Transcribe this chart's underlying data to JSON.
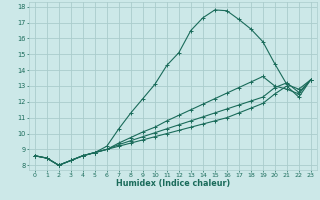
{
  "title": "",
  "xlabel": "Humidex (Indice chaleur)",
  "xlim": [
    -0.5,
    23.5
  ],
  "ylim": [
    7.7,
    18.3
  ],
  "xticks": [
    0,
    1,
    2,
    3,
    4,
    5,
    6,
    7,
    8,
    9,
    10,
    11,
    12,
    13,
    14,
    15,
    16,
    17,
    18,
    19,
    20,
    21,
    22,
    23
  ],
  "yticks": [
    8,
    9,
    10,
    11,
    12,
    13,
    14,
    15,
    16,
    17,
    18
  ],
  "bg_color": "#cce8e8",
  "grid_color": "#aacccc",
  "line_color": "#1a6b5a",
  "lines": [
    {
      "x": [
        0,
        1,
        2,
        3,
        4,
        5,
        6,
        7,
        8,
        9,
        10,
        11,
        12,
        13,
        14,
        15,
        16,
        17,
        18,
        19,
        20,
        21,
        22,
        23
      ],
      "y": [
        8.6,
        8.45,
        8.0,
        8.3,
        8.6,
        8.8,
        9.2,
        10.3,
        11.3,
        12.2,
        13.1,
        14.3,
        15.1,
        16.5,
        17.3,
        17.8,
        17.75,
        17.2,
        16.6,
        15.8,
        14.4,
        13.1,
        12.8,
        13.4
      ]
    },
    {
      "x": [
        0,
        1,
        2,
        3,
        4,
        5,
        6,
        7,
        8,
        9,
        10,
        11,
        12,
        13,
        14,
        15,
        16,
        17,
        18,
        19,
        20,
        21,
        22,
        23
      ],
      "y": [
        8.6,
        8.45,
        8.0,
        8.3,
        8.6,
        8.8,
        9.0,
        9.4,
        9.75,
        10.1,
        10.4,
        10.8,
        11.15,
        11.5,
        11.85,
        12.2,
        12.55,
        12.9,
        13.25,
        13.6,
        13.0,
        12.8,
        12.5,
        13.4
      ]
    },
    {
      "x": [
        0,
        1,
        2,
        3,
        4,
        5,
        6,
        7,
        8,
        9,
        10,
        11,
        12,
        13,
        14,
        15,
        16,
        17,
        18,
        19,
        20,
        21,
        22,
        23
      ],
      "y": [
        8.6,
        8.45,
        8.0,
        8.3,
        8.6,
        8.8,
        9.0,
        9.3,
        9.55,
        9.8,
        10.05,
        10.3,
        10.55,
        10.8,
        11.05,
        11.3,
        11.55,
        11.8,
        12.05,
        12.3,
        12.9,
        13.2,
        12.6,
        13.4
      ]
    },
    {
      "x": [
        0,
        1,
        2,
        3,
        4,
        5,
        6,
        7,
        8,
        9,
        10,
        11,
        12,
        13,
        14,
        15,
        16,
        17,
        18,
        19,
        20,
        21,
        22,
        23
      ],
      "y": [
        8.6,
        8.45,
        8.0,
        8.3,
        8.6,
        8.8,
        9.0,
        9.2,
        9.4,
        9.6,
        9.8,
        10.0,
        10.2,
        10.4,
        10.6,
        10.8,
        11.0,
        11.3,
        11.6,
        11.9,
        12.5,
        13.0,
        12.3,
        13.4
      ]
    }
  ]
}
